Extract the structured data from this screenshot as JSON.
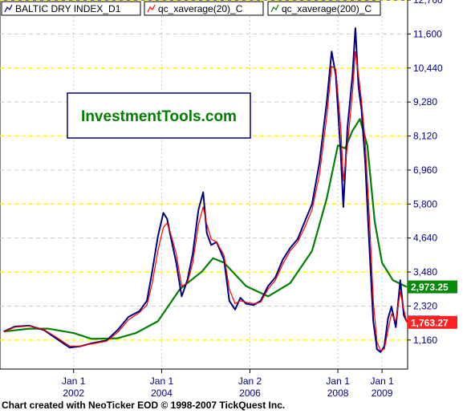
{
  "chart_data": {
    "type": "line",
    "legend_placement": "top-left",
    "grid": true,
    "y_ticks": [
      "12,760",
      "11,600",
      "10,440",
      "9,280",
      "8,120",
      "6,960",
      "5,800",
      "4,640",
      "3,480",
      "2,320",
      "1,160"
    ],
    "y_tick_values": [
      12760,
      11600,
      10440,
      9280,
      8120,
      6960,
      5800,
      4640,
      3480,
      2320,
      1160
    ],
    "ylim": [
      170,
      12760
    ],
    "x_ticks": [
      {
        "line1": "Jan 1",
        "line2": "2002",
        "date": "2002-01-01"
      },
      {
        "line1": "Jan 1",
        "line2": "2004",
        "date": "2004-01-01"
      },
      {
        "line1": "Jan 2",
        "line2": "2006",
        "date": "2006-01-02"
      },
      {
        "line1": "Jan 1",
        "line2": "2008",
        "date": "2008-01-01"
      },
      {
        "line1": "Jan 1",
        "line2": "2009",
        "date": "2009-01-01"
      }
    ],
    "xlim": [
      "2000-05-01",
      "2009-08-01"
    ],
    "price_labels": [
      {
        "text": "2,973.25",
        "value": 2973.25,
        "color": "#0a8a0a"
      },
      {
        "text": "1,763.27",
        "value": 1763.27,
        "color": "#ff2222"
      }
    ],
    "series": [
      {
        "name": "BALTIC DRY INDEX_D1",
        "color": "#000080",
        "points": [
          [
            "2000-06-01",
            1450
          ],
          [
            "2000-09-01",
            1620
          ],
          [
            "2001-01-01",
            1650
          ],
          [
            "2001-05-01",
            1500
          ],
          [
            "2001-09-01",
            1150
          ],
          [
            "2001-12-01",
            900
          ],
          [
            "2002-03-01",
            950
          ],
          [
            "2002-06-01",
            1050
          ],
          [
            "2002-10-01",
            1150
          ],
          [
            "2003-01-01",
            1500
          ],
          [
            "2003-04-01",
            1950
          ],
          [
            "2003-07-01",
            2150
          ],
          [
            "2003-09-01",
            2500
          ],
          [
            "2003-10-15",
            3500
          ],
          [
            "2003-12-01",
            4700
          ],
          [
            "2004-01-15",
            5500
          ],
          [
            "2004-02-15",
            5300
          ],
          [
            "2004-03-15",
            4700
          ],
          [
            "2004-05-01",
            3800
          ],
          [
            "2004-06-15",
            2650
          ],
          [
            "2004-08-01",
            3200
          ],
          [
            "2004-09-15",
            4100
          ],
          [
            "2004-11-01",
            5600
          ],
          [
            "2004-12-10",
            6200
          ],
          [
            "2005-01-10",
            4800
          ],
          [
            "2005-02-15",
            4400
          ],
          [
            "2005-04-01",
            4500
          ],
          [
            "2005-06-01",
            3900
          ],
          [
            "2005-07-15",
            2500
          ],
          [
            "2005-09-01",
            2200
          ],
          [
            "2005-10-15",
            2600
          ],
          [
            "2005-12-01",
            2400
          ],
          [
            "2006-02-01",
            2350
          ],
          [
            "2006-04-01",
            2500
          ],
          [
            "2006-06-01",
            3000
          ],
          [
            "2006-08-01",
            3300
          ],
          [
            "2006-10-01",
            3900
          ],
          [
            "2006-12-01",
            4300
          ],
          [
            "2007-02-01",
            4600
          ],
          [
            "2007-04-01",
            5200
          ],
          [
            "2007-06-01",
            5800
          ],
          [
            "2007-08-01",
            7200
          ],
          [
            "2007-10-01",
            9300
          ],
          [
            "2007-11-10",
            11000
          ],
          [
            "2007-12-15",
            10200
          ],
          [
            "2008-01-25",
            7500
          ],
          [
            "2008-02-15",
            5700
          ],
          [
            "2008-03-20",
            8400
          ],
          [
            "2008-05-01",
            10200
          ],
          [
            "2008-05-25",
            11800
          ],
          [
            "2008-06-20",
            9800
          ],
          [
            "2008-07-15",
            9000
          ],
          [
            "2008-08-15",
            7200
          ],
          [
            "2008-09-20",
            4200
          ],
          [
            "2008-10-20",
            1800
          ],
          [
            "2008-11-20",
            850
          ],
          [
            "2008-12-20",
            750
          ],
          [
            "2009-01-20",
            950
          ],
          [
            "2009-02-20",
            1900
          ],
          [
            "2009-03-20",
            2300
          ],
          [
            "2009-04-25",
            1600
          ],
          [
            "2009-06-01",
            3200
          ],
          [
            "2009-07-01",
            2000
          ],
          [
            "2009-07-25",
            1800
          ]
        ]
      },
      {
        "name": "qc_xaverage(20)_C",
        "color": "#ff0000",
        "points": [
          [
            "2000-06-01",
            1440
          ],
          [
            "2000-09-01",
            1600
          ],
          [
            "2001-01-01",
            1640
          ],
          [
            "2001-05-01",
            1520
          ],
          [
            "2001-09-01",
            1200
          ],
          [
            "2001-12-01",
            950
          ],
          [
            "2002-03-01",
            950
          ],
          [
            "2002-06-01",
            1030
          ],
          [
            "2002-10-01",
            1120
          ],
          [
            "2003-01-01",
            1420
          ],
          [
            "2003-04-01",
            1850
          ],
          [
            "2003-07-01",
            2100
          ],
          [
            "2003-09-01",
            2350
          ],
          [
            "2003-10-15",
            3100
          ],
          [
            "2003-12-01",
            4200
          ],
          [
            "2004-01-15",
            5000
          ],
          [
            "2004-02-15",
            5150
          ],
          [
            "2004-03-15",
            4800
          ],
          [
            "2004-05-01",
            4100
          ],
          [
            "2004-06-15",
            3000
          ],
          [
            "2004-08-01",
            3100
          ],
          [
            "2004-09-15",
            3800
          ],
          [
            "2004-11-01",
            5100
          ],
          [
            "2004-12-10",
            5700
          ],
          [
            "2005-01-10",
            5100
          ],
          [
            "2005-02-15",
            4600
          ],
          [
            "2005-04-01",
            4500
          ],
          [
            "2005-06-01",
            4050
          ],
          [
            "2005-07-15",
            2900
          ],
          [
            "2005-09-01",
            2400
          ],
          [
            "2005-10-15",
            2500
          ],
          [
            "2005-12-01",
            2450
          ],
          [
            "2006-02-01",
            2400
          ],
          [
            "2006-04-01",
            2450
          ],
          [
            "2006-06-01",
            2900
          ],
          [
            "2006-08-01",
            3200
          ],
          [
            "2006-10-01",
            3750
          ],
          [
            "2006-12-01",
            4200
          ],
          [
            "2007-02-01",
            4500
          ],
          [
            "2007-04-01",
            5000
          ],
          [
            "2007-06-01",
            5600
          ],
          [
            "2007-08-01",
            6800
          ],
          [
            "2007-10-01",
            8800
          ],
          [
            "2007-11-10",
            10500
          ],
          [
            "2007-12-15",
            10400
          ],
          [
            "2008-01-25",
            8400
          ],
          [
            "2008-02-15",
            6600
          ],
          [
            "2008-03-20",
            7800
          ],
          [
            "2008-05-01",
            9600
          ],
          [
            "2008-05-25",
            11000
          ],
          [
            "2008-06-20",
            10200
          ],
          [
            "2008-07-15",
            9300
          ],
          [
            "2008-08-15",
            7900
          ],
          [
            "2008-09-20",
            5200
          ],
          [
            "2008-10-20",
            2500
          ],
          [
            "2008-11-20",
            1100
          ],
          [
            "2008-12-20",
            800
          ],
          [
            "2009-01-20",
            850
          ],
          [
            "2009-02-20",
            1500
          ],
          [
            "2009-03-20",
            2050
          ],
          [
            "2009-04-25",
            1800
          ],
          [
            "2009-06-01",
            2800
          ],
          [
            "2009-07-01",
            2200
          ],
          [
            "2009-07-25",
            1763
          ]
        ]
      },
      {
        "name": "qc_xaverage(200)_C",
        "color": "#008000",
        "points": [
          [
            "2000-06-01",
            1450
          ],
          [
            "2001-01-01",
            1550
          ],
          [
            "2001-06-01",
            1550
          ],
          [
            "2002-01-01",
            1400
          ],
          [
            "2002-06-01",
            1200
          ],
          [
            "2003-01-01",
            1220
          ],
          [
            "2003-06-01",
            1400
          ],
          [
            "2003-12-01",
            1800
          ],
          [
            "2004-06-01",
            2900
          ],
          [
            "2004-12-01",
            3500
          ],
          [
            "2005-03-01",
            3950
          ],
          [
            "2005-06-01",
            3800
          ],
          [
            "2005-12-01",
            3000
          ],
          [
            "2006-06-01",
            2650
          ],
          [
            "2006-12-01",
            3100
          ],
          [
            "2007-06-01",
            4200
          ],
          [
            "2007-10-01",
            6000
          ],
          [
            "2008-01-01",
            7800
          ],
          [
            "2008-03-01",
            7700
          ],
          [
            "2008-05-01",
            8300
          ],
          [
            "2008-07-01",
            8700
          ],
          [
            "2008-09-01",
            7800
          ],
          [
            "2008-11-01",
            5200
          ],
          [
            "2009-01-01",
            3800
          ],
          [
            "2009-04-01",
            3200
          ],
          [
            "2009-07-25",
            2973
          ]
        ]
      }
    ]
  },
  "watermark": {
    "text": "InvestmentTools.com"
  },
  "footer": {
    "text": "Chart created with NeoTicker EOD © 1998-2007 TickQuest Inc."
  },
  "colors": {
    "background": "#ffffff",
    "grid_yellow": "#ffff00",
    "grid_gray": "#cccccc",
    "axis_text": "#000080",
    "watermark_text": "#008000",
    "watermark_border": "#000080"
  }
}
